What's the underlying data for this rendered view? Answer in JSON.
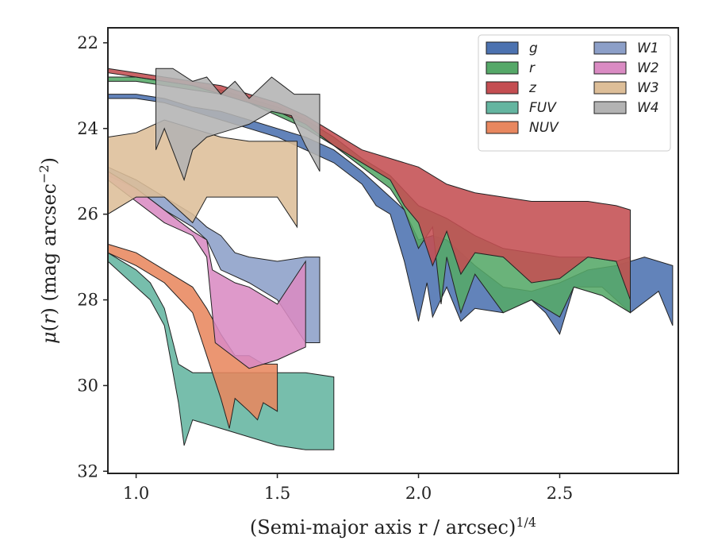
{
  "chart_data": {
    "type": "area",
    "xlabel": "(Semi-major axis r / arcsec)",
    "xlabel_var": "r",
    "xlabel_sup": "1/4",
    "ylabel_mu": "μ",
    "ylabel_var": "r",
    "ylabel_unit": "(mag arcsec",
    "ylabel_sup": "−2",
    "ylabel_end": ")",
    "xlim": [
      0.9,
      2.92
    ],
    "ylim": [
      32.05,
      21.65
    ],
    "y_inverted": true,
    "xticks": [
      {
        "value": 1.0,
        "label": "1.0"
      },
      {
        "value": 1.5,
        "label": "1.5"
      },
      {
        "value": 2.0,
        "label": "2.0"
      },
      {
        "value": 2.5,
        "label": "2.5"
      }
    ],
    "yticks": [
      {
        "value": 22,
        "label": "22"
      },
      {
        "value": 24,
        "label": "24"
      },
      {
        "value": 26,
        "label": "26"
      },
      {
        "value": 28,
        "label": "28"
      },
      {
        "value": 30,
        "label": "30"
      },
      {
        "value": 32,
        "label": "32"
      }
    ],
    "grid": false,
    "legend_position": "top-right",
    "legend_columns": 2,
    "series": [
      {
        "name": "g",
        "color": "#4C72B0",
        "upper": [
          [
            0.9,
            23.2
          ],
          [
            1.0,
            23.2
          ],
          [
            1.1,
            23.3
          ],
          [
            1.2,
            23.5
          ],
          [
            1.3,
            23.6
          ],
          [
            1.4,
            23.8
          ],
          [
            1.5,
            24.0
          ],
          [
            1.6,
            24.2
          ],
          [
            1.7,
            24.5
          ],
          [
            1.8,
            25.0
          ],
          [
            1.9,
            25.6
          ],
          [
            1.95,
            25.9
          ],
          [
            2.0,
            26.6
          ],
          [
            2.05,
            26.5
          ],
          [
            2.1,
            26.6
          ],
          [
            2.2,
            27.2
          ],
          [
            2.3,
            27.7
          ],
          [
            2.4,
            27.8
          ],
          [
            2.5,
            27.6
          ],
          [
            2.6,
            27.3
          ],
          [
            2.7,
            27.2
          ],
          [
            2.8,
            27.0
          ],
          [
            2.9,
            27.2
          ]
        ],
        "lower": [
          [
            0.9,
            23.3
          ],
          [
            1.0,
            23.3
          ],
          [
            1.1,
            23.4
          ],
          [
            1.2,
            23.6
          ],
          [
            1.3,
            23.8
          ],
          [
            1.4,
            24.0
          ],
          [
            1.5,
            24.2
          ],
          [
            1.6,
            24.5
          ],
          [
            1.7,
            24.8
          ],
          [
            1.8,
            25.3
          ],
          [
            1.85,
            25.8
          ],
          [
            1.9,
            26.0
          ],
          [
            1.95,
            27.1
          ],
          [
            2.0,
            28.5
          ],
          [
            2.03,
            27.6
          ],
          [
            2.05,
            28.4
          ],
          [
            2.1,
            27.7
          ],
          [
            2.15,
            28.5
          ],
          [
            2.2,
            28.2
          ],
          [
            2.3,
            28.3
          ],
          [
            2.4,
            28.0
          ],
          [
            2.45,
            28.3
          ],
          [
            2.5,
            28.8
          ],
          [
            2.55,
            27.7
          ],
          [
            2.65,
            27.7
          ],
          [
            2.75,
            28.3
          ],
          [
            2.85,
            27.8
          ],
          [
            2.9,
            28.6
          ]
        ]
      },
      {
        "name": "r",
        "color": "#55A868",
        "upper": [
          [
            0.9,
            22.8
          ],
          [
            1.0,
            22.8
          ],
          [
            1.1,
            22.9
          ],
          [
            1.2,
            23.0
          ],
          [
            1.3,
            23.1
          ],
          [
            1.4,
            23.3
          ],
          [
            1.5,
            23.5
          ],
          [
            1.6,
            23.8
          ],
          [
            1.7,
            24.2
          ],
          [
            1.8,
            24.7
          ],
          [
            1.9,
            25.1
          ],
          [
            2.0,
            25.8
          ],
          [
            2.1,
            26.1
          ],
          [
            2.2,
            26.5
          ],
          [
            2.3,
            26.8
          ],
          [
            2.4,
            26.9
          ],
          [
            2.5,
            27.0
          ],
          [
            2.6,
            27.0
          ],
          [
            2.7,
            27.1
          ],
          [
            2.75,
            27.0
          ]
        ],
        "lower": [
          [
            0.9,
            22.9
          ],
          [
            1.0,
            22.9
          ],
          [
            1.1,
            23.0
          ],
          [
            1.2,
            23.1
          ],
          [
            1.3,
            23.2
          ],
          [
            1.4,
            23.4
          ],
          [
            1.5,
            23.7
          ],
          [
            1.6,
            24.0
          ],
          [
            1.7,
            24.4
          ],
          [
            1.8,
            24.9
          ],
          [
            1.9,
            25.4
          ],
          [
            1.95,
            25.9
          ],
          [
            2.0,
            26.8
          ],
          [
            2.05,
            26.3
          ],
          [
            2.08,
            28.1
          ],
          [
            2.1,
            27.0
          ],
          [
            2.15,
            28.3
          ],
          [
            2.2,
            27.4
          ],
          [
            2.3,
            28.3
          ],
          [
            2.4,
            28.0
          ],
          [
            2.5,
            28.4
          ],
          [
            2.55,
            27.7
          ],
          [
            2.65,
            27.9
          ],
          [
            2.75,
            28.3
          ]
        ]
      },
      {
        "name": "z",
        "color": "#C44E52",
        "upper": [
          [
            0.9,
            22.6
          ],
          [
            1.0,
            22.7
          ],
          [
            1.1,
            22.8
          ],
          [
            1.2,
            22.9
          ],
          [
            1.3,
            23.0
          ],
          [
            1.4,
            23.2
          ],
          [
            1.5,
            23.4
          ],
          [
            1.6,
            23.7
          ],
          [
            1.7,
            24.1
          ],
          [
            1.8,
            24.5
          ],
          [
            1.9,
            24.7
          ],
          [
            2.0,
            24.9
          ],
          [
            2.1,
            25.3
          ],
          [
            2.2,
            25.5
          ],
          [
            2.3,
            25.6
          ],
          [
            2.4,
            25.7
          ],
          [
            2.5,
            25.7
          ],
          [
            2.6,
            25.7
          ],
          [
            2.7,
            25.8
          ],
          [
            2.75,
            25.9
          ]
        ],
        "lower": [
          [
            0.9,
            22.7
          ],
          [
            1.0,
            22.8
          ],
          [
            1.1,
            22.9
          ],
          [
            1.2,
            23.0
          ],
          [
            1.3,
            23.2
          ],
          [
            1.4,
            23.4
          ],
          [
            1.5,
            23.6
          ],
          [
            1.6,
            23.9
          ],
          [
            1.7,
            24.4
          ],
          [
            1.8,
            24.8
          ],
          [
            1.9,
            25.2
          ],
          [
            1.95,
            25.8
          ],
          [
            2.0,
            26.2
          ],
          [
            2.05,
            27.2
          ],
          [
            2.1,
            26.4
          ],
          [
            2.15,
            27.4
          ],
          [
            2.2,
            26.9
          ],
          [
            2.3,
            27.0
          ],
          [
            2.4,
            27.6
          ],
          [
            2.5,
            27.5
          ],
          [
            2.6,
            27.0
          ],
          [
            2.7,
            27.1
          ],
          [
            2.75,
            28.0
          ]
        ]
      },
      {
        "name": "FUV",
        "color": "#64B5A0",
        "upper": [
          [
            0.9,
            26.9
          ],
          [
            1.0,
            27.3
          ],
          [
            1.05,
            27.6
          ],
          [
            1.1,
            28.2
          ],
          [
            1.15,
            29.5
          ],
          [
            1.2,
            29.7
          ],
          [
            1.3,
            29.7
          ],
          [
            1.4,
            29.7
          ],
          [
            1.5,
            29.7
          ],
          [
            1.6,
            29.7
          ],
          [
            1.7,
            29.8
          ]
        ],
        "lower": [
          [
            0.9,
            27.1
          ],
          [
            1.0,
            27.7
          ],
          [
            1.05,
            28.0
          ],
          [
            1.1,
            28.6
          ],
          [
            1.15,
            30.4
          ],
          [
            1.17,
            31.4
          ],
          [
            1.2,
            30.8
          ],
          [
            1.3,
            31.0
          ],
          [
            1.4,
            31.2
          ],
          [
            1.5,
            31.4
          ],
          [
            1.6,
            31.5
          ],
          [
            1.7,
            31.5
          ]
        ]
      },
      {
        "name": "NUV",
        "color": "#E8875F",
        "upper": [
          [
            0.9,
            26.7
          ],
          [
            1.0,
            26.9
          ],
          [
            1.1,
            27.3
          ],
          [
            1.2,
            27.7
          ],
          [
            1.25,
            28.2
          ],
          [
            1.3,
            28.8
          ],
          [
            1.35,
            29.3
          ],
          [
            1.4,
            29.3
          ],
          [
            1.45,
            29.5
          ],
          [
            1.5,
            29.5
          ]
        ],
        "lower": [
          [
            0.9,
            26.9
          ],
          [
            1.0,
            27.2
          ],
          [
            1.1,
            27.6
          ],
          [
            1.2,
            28.3
          ],
          [
            1.25,
            29.3
          ],
          [
            1.3,
            30.3
          ],
          [
            1.33,
            31.0
          ],
          [
            1.35,
            30.3
          ],
          [
            1.4,
            30.6
          ],
          [
            1.43,
            30.8
          ],
          [
            1.45,
            30.4
          ],
          [
            1.5,
            30.6
          ]
        ]
      },
      {
        "name": "W1",
        "color": "#8C9FC8",
        "upper": [
          [
            0.9,
            24.9
          ],
          [
            1.0,
            25.2
          ],
          [
            1.1,
            25.6
          ],
          [
            1.2,
            26.0
          ],
          [
            1.25,
            26.3
          ],
          [
            1.3,
            26.5
          ],
          [
            1.35,
            26.9
          ],
          [
            1.4,
            27.0
          ],
          [
            1.5,
            27.1
          ],
          [
            1.6,
            27.0
          ],
          [
            1.65,
            27.0
          ]
        ],
        "lower": [
          [
            0.9,
            25.1
          ],
          [
            1.0,
            25.4
          ],
          [
            1.1,
            25.9
          ],
          [
            1.2,
            26.3
          ],
          [
            1.25,
            26.6
          ],
          [
            1.3,
            27.3
          ],
          [
            1.4,
            27.6
          ],
          [
            1.5,
            28.0
          ],
          [
            1.6,
            29.0
          ],
          [
            1.65,
            29.0
          ]
        ]
      },
      {
        "name": "W2",
        "color": "#DA8BC3",
        "upper": [
          [
            0.9,
            25.0
          ],
          [
            1.0,
            25.4
          ],
          [
            1.1,
            25.9
          ],
          [
            1.2,
            26.4
          ],
          [
            1.25,
            26.6
          ],
          [
            1.27,
            27.3
          ],
          [
            1.35,
            27.6
          ],
          [
            1.4,
            27.7
          ],
          [
            1.5,
            28.1
          ],
          [
            1.6,
            27.1
          ]
        ],
        "lower": [
          [
            0.9,
            25.2
          ],
          [
            1.0,
            25.7
          ],
          [
            1.1,
            26.2
          ],
          [
            1.2,
            26.5
          ],
          [
            1.25,
            27.0
          ],
          [
            1.28,
            29.0
          ],
          [
            1.4,
            29.6
          ],
          [
            1.5,
            29.4
          ],
          [
            1.6,
            29.1
          ]
        ]
      },
      {
        "name": "W3",
        "color": "#DDBE98",
        "upper": [
          [
            0.9,
            24.2
          ],
          [
            1.0,
            24.1
          ],
          [
            1.1,
            23.8
          ],
          [
            1.2,
            24.0
          ],
          [
            1.3,
            24.2
          ],
          [
            1.4,
            24.3
          ],
          [
            1.5,
            24.3
          ],
          [
            1.57,
            24.3
          ]
        ],
        "lower": [
          [
            0.9,
            26.0
          ],
          [
            1.0,
            25.6
          ],
          [
            1.1,
            25.6
          ],
          [
            1.2,
            26.2
          ],
          [
            1.25,
            25.6
          ],
          [
            1.3,
            25.6
          ],
          [
            1.4,
            25.6
          ],
          [
            1.5,
            25.6
          ],
          [
            1.57,
            26.3
          ]
        ]
      },
      {
        "name": "W4",
        "color": "#B3B3B3",
        "upper": [
          [
            1.07,
            22.6
          ],
          [
            1.13,
            22.6
          ],
          [
            1.2,
            22.9
          ],
          [
            1.25,
            22.8
          ],
          [
            1.3,
            23.2
          ],
          [
            1.35,
            22.9
          ],
          [
            1.4,
            23.3
          ],
          [
            1.48,
            22.8
          ],
          [
            1.52,
            23.0
          ],
          [
            1.56,
            23.2
          ],
          [
            1.65,
            23.2
          ]
        ],
        "lower": [
          [
            1.07,
            24.5
          ],
          [
            1.1,
            24.0
          ],
          [
            1.17,
            25.2
          ],
          [
            1.2,
            24.5
          ],
          [
            1.25,
            24.2
          ],
          [
            1.3,
            24.1
          ],
          [
            1.35,
            24.0
          ],
          [
            1.4,
            23.9
          ],
          [
            1.48,
            23.6
          ],
          [
            1.55,
            23.7
          ],
          [
            1.6,
            24.4
          ],
          [
            1.65,
            25.0
          ]
        ]
      }
    ]
  }
}
